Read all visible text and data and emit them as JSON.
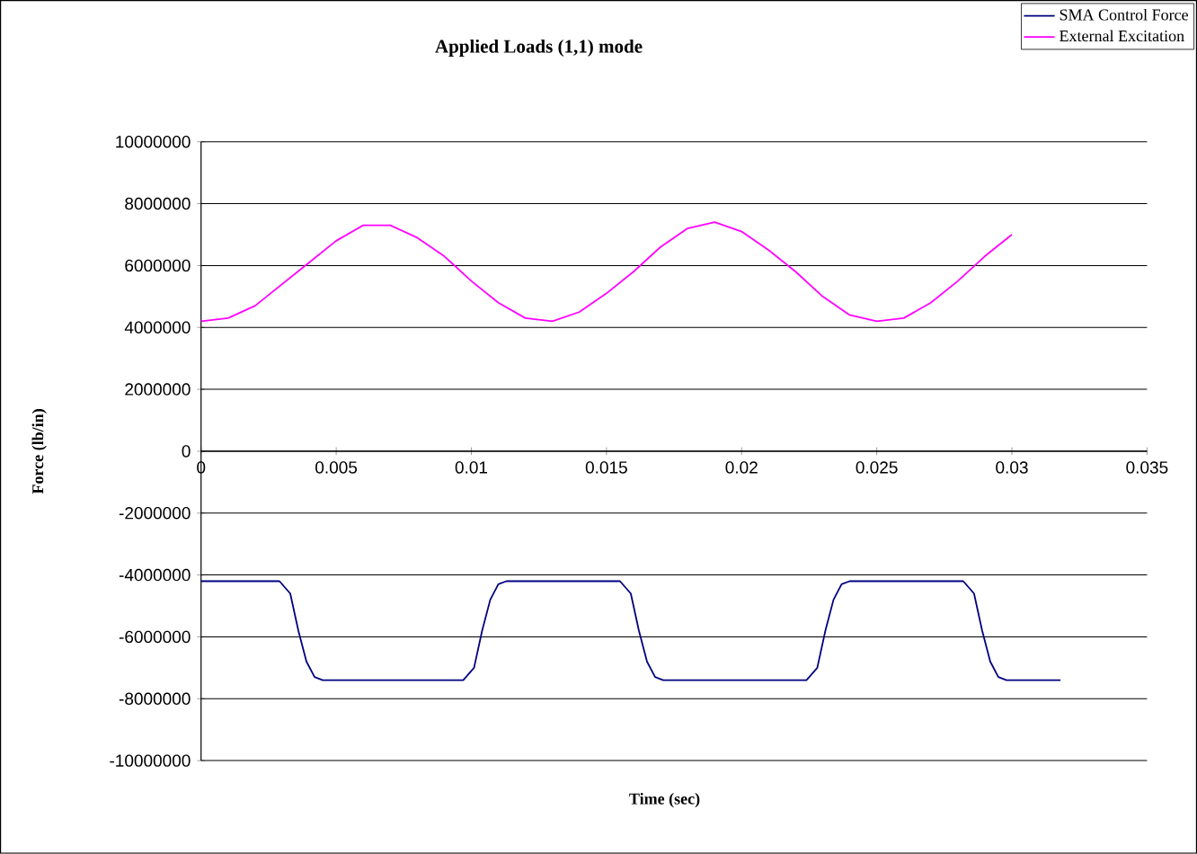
{
  "chart_data": {
    "type": "line",
    "title": "Applied Loads (1,1) mode",
    "xlabel": "Time (sec)",
    "ylabel": "Force (lb/in)",
    "xlim": [
      0,
      0.035
    ],
    "xticks": [
      0,
      0.005,
      0.01,
      0.015,
      0.02,
      0.025,
      0.03,
      0.035
    ],
    "ylim": [
      -10000000,
      10000000
    ],
    "yticks": [
      -10000000,
      -8000000,
      -6000000,
      -4000000,
      -2000000,
      0,
      2000000,
      4000000,
      6000000,
      8000000,
      10000000
    ],
    "grid": "y",
    "legend": "top right",
    "marker": "none",
    "line_style": "solid",
    "series": [
      {
        "name": "SMA Control Force",
        "color": "#000080",
        "x": [
          0,
          0.0029,
          0.0033,
          0.0036,
          0.0039,
          0.0042,
          0.0045,
          0.0097,
          0.0101,
          0.0104,
          0.0107,
          0.011,
          0.0113,
          0.0155,
          0.0159,
          0.0162,
          0.0165,
          0.0168,
          0.0171,
          0.0224,
          0.0228,
          0.0231,
          0.0234,
          0.0237,
          0.024,
          0.0282,
          0.0286,
          0.0289,
          0.0292,
          0.0295,
          0.0298,
          0.0318
        ],
        "values": [
          -4200000,
          -4200000,
          -4600000,
          -5800000,
          -6800000,
          -7300000,
          -7400000,
          -7400000,
          -7000000,
          -5800000,
          -4800000,
          -4300000,
          -4200000,
          -4200000,
          -4600000,
          -5800000,
          -6800000,
          -7300000,
          -7400000,
          -7400000,
          -7000000,
          -5800000,
          -4800000,
          -4300000,
          -4200000,
          -4200000,
          -4600000,
          -5800000,
          -6800000,
          -7300000,
          -7400000,
          -7400000
        ]
      },
      {
        "name": "External Excitation",
        "color": "#ff00ff",
        "x": [
          0,
          0.001,
          0.002,
          0.003,
          0.004,
          0.005,
          0.006,
          0.007,
          0.008,
          0.009,
          0.01,
          0.011,
          0.012,
          0.013,
          0.014,
          0.015,
          0.016,
          0.017,
          0.018,
          0.019,
          0.02,
          0.021,
          0.022,
          0.023,
          0.024,
          0.025,
          0.026,
          0.027,
          0.028,
          0.029,
          0.03
        ],
        "values": [
          4200000,
          4300000,
          4700000,
          5400000,
          6100000,
          6800000,
          7300000,
          7300000,
          6900000,
          6300000,
          5500000,
          4800000,
          4300000,
          4200000,
          4500000,
          5100000,
          5800000,
          6600000,
          7200000,
          7400000,
          7100000,
          6500000,
          5800000,
          5000000,
          4400000,
          4200000,
          4300000,
          4800000,
          5500000,
          6300000,
          7000000
        ]
      }
    ]
  }
}
